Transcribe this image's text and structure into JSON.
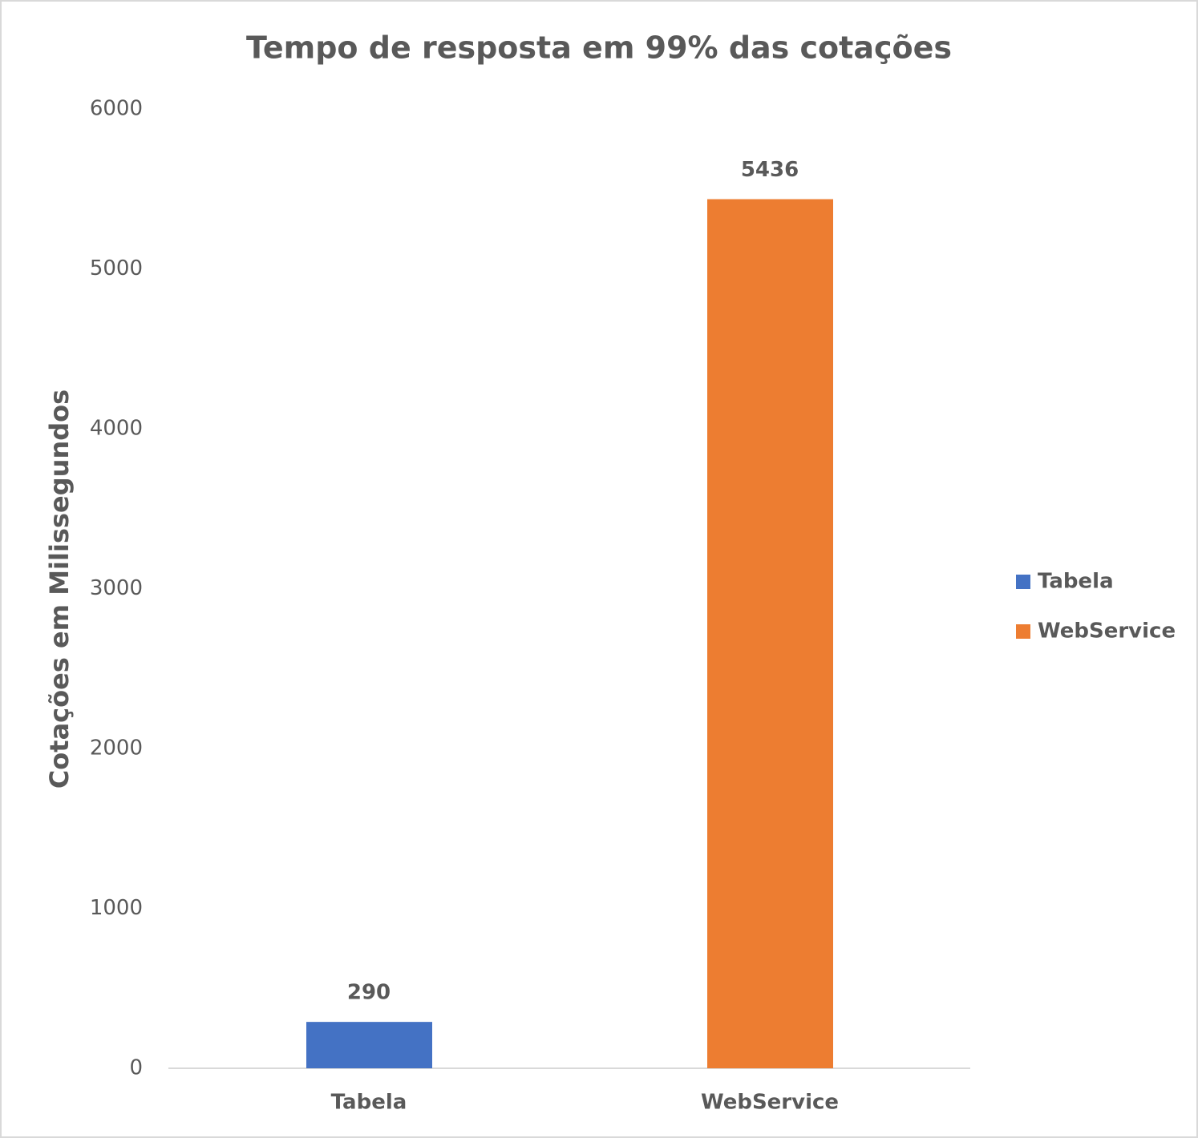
{
  "chart_data": {
    "type": "bar",
    "title": "Tempo de resposta em 99% das cotações",
    "y_label": "Cotações em Milissegundos",
    "categories": [
      "Tabela",
      "WebService"
    ],
    "series": [
      {
        "name": "Tabela",
        "color": "#4472c4",
        "values": [
          290,
          null
        ]
      },
      {
        "name": "WebService",
        "color": "#ed7d31",
        "values": [
          null,
          5436
        ]
      }
    ],
    "ylim": [
      0,
      6000
    ],
    "yticks": [
      0,
      1000,
      2000,
      3000,
      4000,
      5000,
      6000
    ],
    "grid": false,
    "legend": "right"
  }
}
